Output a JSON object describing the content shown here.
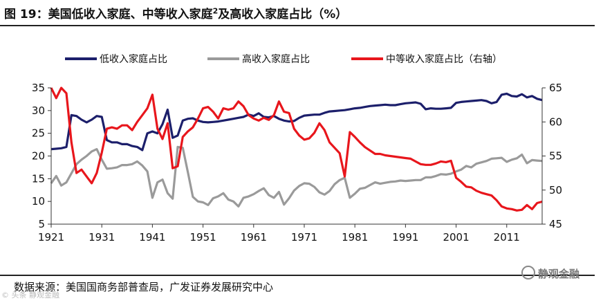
{
  "figure": {
    "title": "图 19：美国低收入家庭、中等收入家庭",
    "title_sup": "2",
    "title_tail": "及高收入家庭占比（%）",
    "source": "数据来源：美国国商务部普查局，广发证券发展研究中心",
    "watermark": "静观金融",
    "corner_mark": "© 头条 静观金融"
  },
  "chart_data": {
    "type": "line",
    "title": "",
    "xlabel": "",
    "ylabel": "",
    "xlim": [
      1921,
      2018
    ],
    "x_ticks": [
      1921,
      1931,
      1941,
      1951,
      1961,
      1971,
      1981,
      1991,
      2001,
      2011
    ],
    "ylim_left": [
      5,
      35
    ],
    "y_ticks_left": [
      5,
      10,
      15,
      20,
      25,
      30,
      35
    ],
    "ylim_right": [
      45,
      65
    ],
    "y_ticks_right": [
      45,
      50,
      55,
      60,
      65
    ],
    "grid": false,
    "legend_position": "top",
    "series": [
      {
        "name": "低收入家庭占比",
        "axis": "left",
        "color": "#1c1f6b",
        "x": [
          1921,
          1922,
          1923,
          1924,
          1925,
          1926,
          1927,
          1928,
          1929,
          1930,
          1931,
          1932,
          1933,
          1934,
          1935,
          1936,
          1937,
          1938,
          1939,
          1940,
          1941,
          1942,
          1943,
          1944,
          1945,
          1946,
          1947,
          1948,
          1949,
          1950,
          1951,
          1952,
          1953,
          1954,
          1955,
          1956,
          1957,
          1958,
          1959,
          1960,
          1961,
          1962,
          1963,
          1964,
          1965,
          1966,
          1967,
          1968,
          1969,
          1970,
          1971,
          1972,
          1973,
          1974,
          1975,
          1976,
          1977,
          1978,
          1979,
          1980,
          1981,
          1982,
          1983,
          1984,
          1985,
          1986,
          1987,
          1988,
          1989,
          1990,
          1991,
          1992,
          1993,
          1994,
          1995,
          1996,
          1997,
          1998,
          1999,
          2000,
          2001,
          2002,
          2003,
          2004,
          2005,
          2006,
          2007,
          2008,
          2009,
          2010,
          2011,
          2012,
          2013,
          2014,
          2015,
          2016,
          2017,
          2018
        ],
        "values": [
          21.5,
          21.6,
          21.7,
          22,
          29,
          28.8,
          28,
          27.4,
          28,
          28.8,
          28.6,
          23.5,
          23,
          23,
          22.6,
          22.6,
          22.2,
          22,
          21.3,
          25,
          25.4,
          25,
          27,
          30.2,
          24,
          24.5,
          27.8,
          28.2,
          28.3,
          27.8,
          27.5,
          27.4,
          27.5,
          27.6,
          27.8,
          28,
          28.2,
          28.4,
          28.6,
          29.1,
          28.8,
          29.4,
          28.6,
          28.5,
          28.8,
          28.2,
          27.8,
          27.6,
          27.7,
          28.4,
          28.9,
          29,
          29.1,
          29.1,
          29.5,
          29.8,
          29.9,
          30,
          30.1,
          30.3,
          30.5,
          30.6,
          30.8,
          31,
          31.1,
          31.2,
          31.3,
          31.2,
          31.2,
          31.4,
          31.6,
          31.7,
          31.8,
          31.5,
          30.3,
          30.5,
          30.4,
          30.4,
          30.5,
          30.6,
          31.7,
          31.9,
          32,
          32.1,
          32.2,
          32.3,
          32.1,
          31.6,
          31.9,
          33.5,
          33.7,
          33.2,
          33.1,
          33.6,
          32.9,
          33.2,
          32.6,
          32.3
        ]
      },
      {
        "name": "高收入家庭占比",
        "axis": "left",
        "color": "#9a9a9a",
        "x": [
          1921,
          1922,
          1923,
          1924,
          1925,
          1926,
          1927,
          1928,
          1929,
          1930,
          1931,
          1932,
          1933,
          1934,
          1935,
          1936,
          1937,
          1938,
          1939,
          1940,
          1941,
          1942,
          1943,
          1944,
          1945,
          1946,
          1947,
          1948,
          1949,
          1950,
          1951,
          1952,
          1953,
          1954,
          1955,
          1956,
          1957,
          1958,
          1959,
          1960,
          1961,
          1962,
          1963,
          1964,
          1965,
          1966,
          1967,
          1968,
          1969,
          1970,
          1971,
          1972,
          1973,
          1974,
          1975,
          1976,
          1977,
          1978,
          1979,
          1980,
          1981,
          1982,
          1983,
          1984,
          1985,
          1986,
          1987,
          1988,
          1989,
          1990,
          1991,
          1992,
          1993,
          1994,
          1995,
          1996,
          1997,
          1998,
          1999,
          2000,
          2001,
          2002,
          2003,
          2004,
          2005,
          2006,
          2007,
          2008,
          2009,
          2010,
          2011,
          2012,
          2013,
          2014,
          2015,
          2016,
          2017,
          2018
        ],
        "values": [
          14,
          15.6,
          13.5,
          14.2,
          16.2,
          18.2,
          19.2,
          20,
          21,
          21.5,
          19.2,
          17.2,
          17.3,
          17.5,
          18,
          18,
          18.2,
          18.8,
          17.9,
          16.6,
          10.8,
          14.2,
          14.8,
          11.8,
          10.6,
          22,
          21.8,
          16.5,
          11,
          10,
          9.8,
          9.2,
          10.7,
          11.1,
          11.8,
          10.4,
          10,
          8.9,
          10.8,
          11.1,
          11.6,
          12.3,
          12.9,
          11.4,
          10.8,
          12.1,
          9.3,
          10.7,
          12.4,
          13.4,
          14,
          13.9,
          13.2,
          12,
          11.5,
          12.3,
          13.8,
          14.7,
          15.2,
          10.8,
          11.7,
          12.8,
          13,
          13.6,
          14.2,
          13.9,
          14.1,
          14.3,
          14.4,
          14.6,
          14.5,
          14.6,
          14.7,
          14.7,
          15.3,
          15.3,
          15.6,
          16,
          15.9,
          16.1,
          16.6,
          17,
          17.8,
          17.5,
          18.3,
          18.6,
          18.9,
          19.4,
          19.5,
          19.6,
          18.7,
          19.2,
          19.5,
          20.3,
          18.4,
          19.1,
          19,
          18.9
        ]
      },
      {
        "name": "中等收入家庭占比（右轴）",
        "axis": "right",
        "color": "#e8161c",
        "x": [
          1921,
          1922,
          1923,
          1924,
          1925,
          1926,
          1927,
          1928,
          1929,
          1930,
          1931,
          1932,
          1933,
          1934,
          1935,
          1936,
          1937,
          1938,
          1939,
          1940,
          1941,
          1942,
          1943,
          1944,
          1945,
          1946,
          1947,
          1948,
          1949,
          1950,
          1951,
          1952,
          1953,
          1954,
          1955,
          1956,
          1957,
          1958,
          1959,
          1960,
          1961,
          1962,
          1963,
          1964,
          1965,
          1966,
          1967,
          1968,
          1969,
          1970,
          1971,
          1972,
          1973,
          1974,
          1975,
          1976,
          1977,
          1978,
          1979,
          1980,
          1981,
          1982,
          1983,
          1984,
          1985,
          1986,
          1987,
          1988,
          1989,
          1990,
          1991,
          1992,
          1993,
          1994,
          1995,
          1996,
          1997,
          1998,
          1999,
          2000,
          2001,
          2002,
          2003,
          2004,
          2005,
          2006,
          2007,
          2008,
          2009,
          2010,
          2011,
          2012,
          2013,
          2014,
          2015,
          2016,
          2017,
          2018
        ],
        "values": [
          65,
          63.5,
          65,
          64.2,
          57,
          52.5,
          53,
          52,
          51,
          52.5,
          55.5,
          59,
          59.2,
          59,
          59.5,
          59.5,
          58.8,
          60,
          61,
          62,
          64,
          59,
          57.5,
          59.8,
          53.2,
          53.5,
          57.8,
          58.6,
          59.2,
          60.5,
          62,
          62.2,
          61.5,
          60.5,
          62,
          61.8,
          62,
          63,
          62.3,
          61,
          60.5,
          60.2,
          60.6,
          60.3,
          61,
          63,
          61.5,
          61.3,
          59,
          58,
          57.4,
          57.6,
          58.4,
          59.8,
          58.8,
          57,
          56.2,
          55.4,
          52,
          58.5,
          57.8,
          57,
          56.3,
          55.8,
          55.3,
          55.3,
          55.1,
          55,
          54.9,
          54.8,
          54.7,
          54.6,
          54.2,
          53.8,
          53.7,
          53.7,
          53.9,
          54.2,
          54.1,
          54.3,
          51.8,
          51.2,
          50.5,
          50.4,
          49.9,
          49.6,
          49.4,
          49.2,
          48.5,
          47.6,
          47.3,
          47.2,
          47,
          47.1,
          47.8,
          47.2,
          48.1,
          48.3
        ]
      }
    ]
  }
}
